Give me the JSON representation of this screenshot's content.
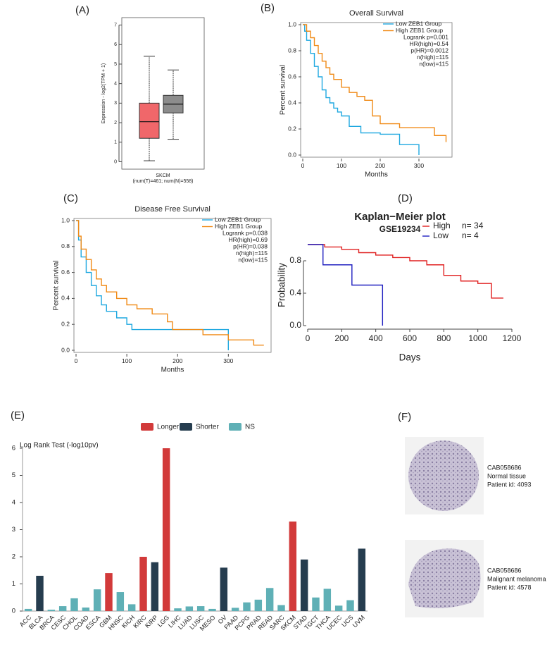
{
  "chart_data": [
    {
      "type": "box",
      "panel": "(A)",
      "ylabel": "Expression - log2(TPM + 1)",
      "xlabel": "SKCM",
      "xsublabel": "(num(T)=461; num(N)=558)",
      "ylim": [
        -0.2,
        7.2
      ],
      "yticks": [
        0,
        1,
        2,
        3,
        4,
        5,
        6,
        7
      ],
      "boxes": [
        {
          "color": "#f0676a",
          "min": 0.05,
          "q1": 1.2,
          "median": 2.05,
          "q3": 3.0,
          "max": 5.4
        },
        {
          "color": "#8c8c8c",
          "min": 1.15,
          "q1": 2.5,
          "median": 2.95,
          "q3": 3.4,
          "max": 4.7
        }
      ]
    },
    {
      "type": "step",
      "panel": "(B)",
      "title": "Overall Survival",
      "xlabel": "Months",
      "ylabel": "Percent survival",
      "xlim": [
        0,
        380
      ],
      "xticks": [
        0,
        100,
        200,
        300
      ],
      "ylim": [
        0,
        1
      ],
      "yticks": [
        {
          "value": 0,
          "label": "0.0"
        },
        {
          "value": 0.2,
          "label": "0.2"
        },
        {
          "value": 0.4,
          "label": "0.4"
        },
        {
          "value": 0.6,
          "label": "0.6"
        },
        {
          "value": 0.8,
          "label": "0.8"
        },
        {
          "value": 1,
          "label": "1.0"
        }
      ],
      "series": [
        {
          "name": "Low ZEB1 Group",
          "color": "#1fa8e0",
          "x": [
            0,
            5,
            10,
            20,
            30,
            40,
            50,
            60,
            70,
            80,
            90,
            100,
            120,
            150,
            200,
            250,
            300
          ],
          "values": [
            1,
            0.95,
            0.88,
            0.78,
            0.68,
            0.6,
            0.5,
            0.44,
            0.4,
            0.36,
            0.33,
            0.3,
            0.22,
            0.17,
            0.16,
            0.08,
            0.0
          ]
        },
        {
          "name": "High ZEB1 Group",
          "color": "#f08a16",
          "x": [
            0,
            10,
            20,
            30,
            40,
            50,
            60,
            70,
            80,
            100,
            120,
            140,
            160,
            180,
            200,
            250,
            300,
            340,
            370
          ],
          "values": [
            1,
            0.95,
            0.9,
            0.84,
            0.78,
            0.72,
            0.67,
            0.62,
            0.58,
            0.52,
            0.48,
            0.45,
            0.42,
            0.3,
            0.24,
            0.21,
            0.21,
            0.15,
            0.1
          ]
        }
      ],
      "annotations": [
        "Logrank p=0.001",
        "HR(high)=0.54",
        "p(HR)=0.0012",
        "n(high)=115",
        "n(low)=115"
      ]
    },
    {
      "type": "step",
      "panel": "(C)",
      "title": "Disease Free Survival",
      "xlabel": "Months",
      "ylabel": "Percent survival",
      "xlim": [
        0,
        380
      ],
      "xticks": [
        0,
        100,
        200,
        300
      ],
      "ylim": [
        0,
        1
      ],
      "yticks": [
        {
          "value": 0,
          "label": "0.0"
        },
        {
          "value": 0.2,
          "label": "0.2"
        },
        {
          "value": 0.4,
          "label": "0.4"
        },
        {
          "value": 0.6,
          "label": "0.6"
        },
        {
          "value": 0.8,
          "label": "0.8"
        },
        {
          "value": 1,
          "label": "1.0"
        }
      ],
      "series": [
        {
          "name": "Low ZEB1 Group",
          "color": "#1fa8e0",
          "x": [
            0,
            5,
            10,
            20,
            30,
            40,
            50,
            60,
            80,
            100,
            110,
            200,
            250,
            300
          ],
          "values": [
            1,
            0.85,
            0.72,
            0.6,
            0.5,
            0.42,
            0.35,
            0.3,
            0.25,
            0.2,
            0.16,
            0.16,
            0.16,
            0.0
          ]
        },
        {
          "name": "High ZEB1 Group",
          "color": "#f08a16",
          "x": [
            0,
            5,
            10,
            20,
            30,
            40,
            50,
            60,
            80,
            100,
            120,
            150,
            180,
            190,
            250,
            300,
            350,
            370
          ],
          "values": [
            1,
            0.88,
            0.78,
            0.7,
            0.62,
            0.55,
            0.5,
            0.45,
            0.4,
            0.35,
            0.32,
            0.28,
            0.22,
            0.16,
            0.12,
            0.08,
            0.04,
            0.04
          ]
        }
      ],
      "annotations": [
        "Logrank p=0.038",
        "HR(high)=0.69",
        "p(HR)=0.038",
        "n(high)=115",
        "n(low)=115"
      ]
    },
    {
      "type": "step",
      "panel": "(D)",
      "title": "Kaplan−Meier plot",
      "subtitle": "GSE19234",
      "xlabel": "Days",
      "ylabel": "Probability",
      "xlim": [
        0,
        1200
      ],
      "xticks": [
        0,
        200,
        400,
        600,
        800,
        1000,
        1200
      ],
      "ylim": [
        0,
        1
      ],
      "yticks": [
        {
          "value": 0,
          "label": "0.0"
        },
        {
          "value": 0.4,
          "label": "0.4"
        },
        {
          "value": 0.8,
          "label": "0.8"
        }
      ],
      "series": [
        {
          "name": "High",
          "n_label": "n= 34",
          "color": "#e02020",
          "x": [
            0,
            100,
            200,
            300,
            400,
            500,
            600,
            700,
            800,
            900,
            1000,
            1050,
            1080,
            1150
          ],
          "values": [
            1,
            0.97,
            0.94,
            0.9,
            0.87,
            0.84,
            0.8,
            0.75,
            0.62,
            0.55,
            0.52,
            0.52,
            0.34,
            0.34
          ]
        },
        {
          "name": "Low",
          "n_label": "n= 4",
          "color": "#2020c0",
          "x": [
            0,
            90,
            260,
            440
          ],
          "values": [
            1,
            0.75,
            0.5,
            0.0
          ]
        }
      ]
    },
    {
      "type": "bar",
      "panel": "(E)",
      "ylabel": "Log Rank Test (-log10pv)",
      "ylim": [
        0,
        6
      ],
      "yticks": [
        0,
        1,
        2,
        3,
        4,
        5,
        6
      ],
      "categories": [
        "ACC",
        "BLCA",
        "BRCA",
        "CESC",
        "CHOL",
        "COAD",
        "ESCA",
        "GBM",
        "HNSC",
        "KICH",
        "KIRC",
        "KIRP",
        "LGG",
        "LIHC",
        "LUAD",
        "LUSC",
        "MESO",
        "OV",
        "PAAD",
        "PCPG",
        "PRAD",
        "READ",
        "SARC",
        "SKCM",
        "STAD",
        "TGCT",
        "THCA",
        "UCEC",
        "UCS",
        "UVM"
      ],
      "series": [
        {
          "name": "Longer",
          "color": "#d23a3a",
          "values": [
            null,
            null,
            null,
            null,
            null,
            null,
            null,
            1.4,
            null,
            null,
            2.0,
            null,
            6.0,
            null,
            null,
            null,
            null,
            null,
            null,
            null,
            null,
            null,
            null,
            3.3,
            null,
            null,
            null,
            null,
            null,
            null
          ]
        },
        {
          "name": "Shorter",
          "color": "#263d4f",
          "values": [
            null,
            1.3,
            null,
            null,
            null,
            null,
            null,
            null,
            null,
            null,
            null,
            1.8,
            null,
            null,
            null,
            null,
            null,
            1.6,
            null,
            null,
            null,
            null,
            null,
            null,
            1.9,
            null,
            null,
            null,
            null,
            2.3
          ]
        },
        {
          "name": "NS",
          "color": "#5fb0b6",
          "values": [
            0.08,
            null,
            0.05,
            0.18,
            0.47,
            0.13,
            0.8,
            null,
            0.7,
            0.25,
            null,
            null,
            null,
            0.1,
            0.17,
            0.18,
            0.08,
            null,
            0.12,
            0.32,
            0.42,
            0.85,
            0.22,
            null,
            null,
            0.5,
            0.82,
            0.2,
            0.4,
            null
          ]
        }
      ]
    }
  ],
  "tissue_panel": {
    "label": "(F)",
    "items": [
      {
        "id": "CAB058686",
        "tissue": "Normal tissue",
        "patient": "Patient id: 4093"
      },
      {
        "id": "CAB058686",
        "tissue": "Malignant melanoma",
        "patient": "Patient id: 4578"
      }
    ]
  }
}
